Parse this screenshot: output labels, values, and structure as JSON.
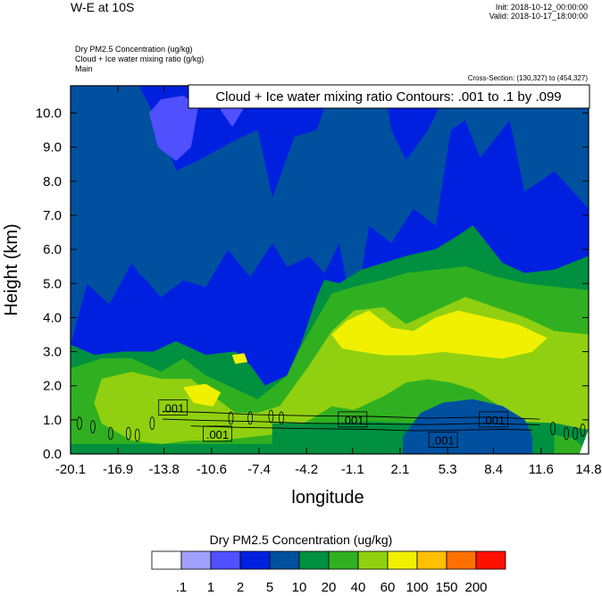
{
  "header": {
    "title": "W-E at 10S",
    "init": "Init: 2018-10-12_00:00:00",
    "valid": "Valid: 2018-10-17_18:00:00",
    "var1": "Dry PM2.5 Concentration   (ug/kg)",
    "var2": "Cloud + Ice water mixing ratio   (g/kg)",
    "var3": "Main",
    "cross_section": "Cross-Section: (130,327) to (454,327)"
  },
  "chart_data": {
    "type": "heatmap",
    "title": "W-E at 10S",
    "xlabel": "longitude",
    "ylabel": "Height (km)",
    "x_ticks": [
      "-20.1",
      "-16.9",
      "-13.8",
      "-10.6",
      "-7.4",
      "-4.2",
      "-1.1",
      "2.1",
      "5.3",
      "8.4",
      "11.6",
      "14.8"
    ],
    "x_range": [
      -20.1,
      14.8
    ],
    "y_ticks": [
      "0.0",
      "1.0",
      "2.0",
      "3.0",
      "4.0",
      "5.0",
      "6.0",
      "7.0",
      "8.0",
      "9.0",
      "10.0"
    ],
    "y_range": [
      0,
      10.8
    ],
    "contour_title": "Cloud + Ice water mixing ratio Contours: .001 to .1 by .099",
    "contour_labels": [
      {
        "text": ".001",
        "lon": -13.2,
        "h": 1.35
      },
      {
        "text": ".001",
        "lon": -10.2,
        "h": 0.58
      },
      {
        "text": ".001",
        "lon": -1.1,
        "h": 1.0
      },
      {
        "text": ".001",
        "lon": 5.0,
        "h": 0.4
      },
      {
        "text": ".001",
        "lon": 8.4,
        "h": 1.0
      }
    ],
    "colorbar": {
      "title": "Dry PM2.5 Concentration  (ug/kg)",
      "labels": [
        ".1",
        "1",
        "2",
        "5",
        "10",
        "20",
        "40",
        "60",
        "100",
        "150",
        "200"
      ],
      "colors": [
        "#ffffff",
        "#a0a0ff",
        "#5050ff",
        "#0020e0",
        "#0050a0",
        "#009040",
        "#30b020",
        "#90d010",
        "#f0f000",
        "#ffc000",
        "#ff7000",
        "#ff1000"
      ]
    },
    "field_regions": [
      {
        "level": 3,
        "pts": [
          [
            -20.1,
            10.8
          ],
          [
            14.8,
            10.8
          ],
          [
            14.8,
            0
          ],
          [
            -20.1,
            0
          ]
        ]
      },
      {
        "level": 4,
        "pts": [
          [
            -20.1,
            10.8
          ],
          [
            -15.5,
            10.8
          ],
          [
            -14.0,
            9.5
          ],
          [
            -13.0,
            8.3
          ],
          [
            -11.5,
            8.6
          ],
          [
            -9.0,
            9.2
          ],
          [
            -7.5,
            9.5
          ],
          [
            -6.5,
            7.5
          ],
          [
            -5.0,
            9.3
          ],
          [
            -3.5,
            9.5
          ],
          [
            -2.5,
            10.8
          ],
          [
            1.0,
            10.8
          ],
          [
            1.5,
            9.5
          ],
          [
            2.5,
            8.6
          ],
          [
            4.0,
            9.5
          ],
          [
            5.5,
            10.8
          ],
          [
            14.8,
            10.8
          ],
          [
            14.8,
            7.2
          ],
          [
            12.5,
            8.3
          ],
          [
            10.5,
            7.7
          ],
          [
            9.5,
            9.8
          ],
          [
            7.5,
            8.7
          ],
          [
            6.5,
            9.8
          ],
          [
            5.5,
            9.5
          ],
          [
            4.5,
            6.7
          ],
          [
            3.0,
            7.2
          ],
          [
            1.5,
            6.2
          ],
          [
            0.0,
            6.7
          ],
          [
            -1.0,
            4.0
          ],
          [
            -2.0,
            6.2
          ],
          [
            -3.0,
            5.3
          ],
          [
            -4.0,
            5.8
          ],
          [
            -5.5,
            5.5
          ],
          [
            -6.5,
            6.2
          ],
          [
            -8.0,
            5.2
          ],
          [
            -9.5,
            6.0
          ],
          [
            -11.0,
            4.9
          ],
          [
            -12.5,
            5.1
          ],
          [
            -14.0,
            4.6
          ],
          [
            -16.0,
            5.6
          ],
          [
            -17.5,
            4.4
          ],
          [
            -19.0,
            5.0
          ],
          [
            -20.1,
            3.2
          ]
        ]
      },
      {
        "level": 2,
        "pts": [
          [
            -14.8,
            10.0
          ],
          [
            -14.2,
            9.0
          ],
          [
            -13.0,
            8.6
          ],
          [
            -12.0,
            9.0
          ],
          [
            -11.5,
            10.2
          ],
          [
            -12.5,
            10.5
          ],
          [
            -14.0,
            10.4
          ]
        ]
      },
      {
        "level": 2,
        "pts": [
          [
            -10.0,
            10.1
          ],
          [
            -9.2,
            9.6
          ],
          [
            -8.5,
            10.1
          ],
          [
            -9.2,
            10.6
          ]
        ]
      },
      {
        "level": 4,
        "pts": [
          [
            -16.2,
            5.8
          ],
          [
            -15.0,
            5.7
          ],
          [
            -14.6,
            5.0
          ],
          [
            -15.5,
            5.3
          ]
        ]
      },
      {
        "level": 5,
        "pts": [
          [
            -20.1,
            3.2
          ],
          [
            -18.5,
            2.9
          ],
          [
            -16.5,
            3.0
          ],
          [
            -14.5,
            3.0
          ],
          [
            -13.0,
            3.3
          ],
          [
            -11.0,
            2.9
          ],
          [
            -9.0,
            3.0
          ],
          [
            -8.0,
            2.6
          ],
          [
            -7.0,
            2.0
          ],
          [
            -5.5,
            2.3
          ],
          [
            -4.5,
            3.3
          ],
          [
            -3.5,
            4.6
          ],
          [
            -3.0,
            5.1
          ],
          [
            -2.0,
            5.0
          ],
          [
            -0.5,
            5.4
          ],
          [
            1.0,
            5.6
          ],
          [
            2.5,
            5.8
          ],
          [
            4.5,
            6.0
          ],
          [
            6.0,
            6.4
          ],
          [
            7.0,
            6.7
          ],
          [
            9.0,
            5.6
          ],
          [
            10.5,
            5.3
          ],
          [
            12.5,
            5.4
          ],
          [
            14.8,
            5.8
          ],
          [
            14.8,
            0.0
          ],
          [
            -20.1,
            0.0
          ]
        ]
      },
      {
        "level": 6,
        "pts": [
          [
            -20.1,
            2.5
          ],
          [
            -18.0,
            2.8
          ],
          [
            -16.0,
            2.8
          ],
          [
            -14.0,
            2.4
          ],
          [
            -12.5,
            2.8
          ],
          [
            -11.0,
            2.3
          ],
          [
            -9.0,
            1.9
          ],
          [
            -7.5,
            1.6
          ],
          [
            -5.5,
            2.3
          ],
          [
            -4.5,
            3.2
          ],
          [
            -2.5,
            4.7
          ],
          [
            -1.0,
            4.9
          ],
          [
            1.0,
            5.1
          ],
          [
            2.5,
            5.3
          ],
          [
            4.5,
            5.4
          ],
          [
            6.5,
            5.5
          ],
          [
            8.5,
            5.2
          ],
          [
            10.5,
            5.0
          ],
          [
            12.5,
            4.9
          ],
          [
            14.8,
            4.8
          ],
          [
            14.8,
            0.3
          ],
          [
            -20.1,
            0.3
          ]
        ]
      },
      {
        "level": 7,
        "pts": [
          [
            -18.0,
            2.2
          ],
          [
            -16.0,
            2.4
          ],
          [
            -14.0,
            2.2
          ],
          [
            -12.0,
            2.2
          ],
          [
            -10.5,
            1.7
          ],
          [
            -9.0,
            1.2
          ],
          [
            -7.5,
            1.2
          ],
          [
            -6.0,
            1.4
          ],
          [
            -4.0,
            2.6
          ],
          [
            -2.5,
            3.6
          ],
          [
            -1.0,
            4.2
          ],
          [
            1.0,
            4.3
          ],
          [
            2.5,
            3.8
          ],
          [
            4.5,
            4.2
          ],
          [
            6.5,
            4.6
          ],
          [
            8.5,
            4.3
          ],
          [
            10.5,
            4.0
          ],
          [
            12.5,
            3.6
          ],
          [
            14.8,
            3.5
          ],
          [
            14.8,
            0.5
          ],
          [
            12.0,
            0.6
          ],
          [
            10.0,
            1.0
          ],
          [
            8.5,
            1.5
          ],
          [
            7.0,
            1.9
          ],
          [
            5.5,
            2.1
          ],
          [
            4.0,
            2.2
          ],
          [
            2.5,
            2.1
          ],
          [
            1.0,
            1.7
          ],
          [
            -1.0,
            1.3
          ],
          [
            -2.5,
            1.4
          ],
          [
            -4.0,
            1.0
          ],
          [
            -6.0,
            0.6
          ],
          [
            -8.0,
            0.5
          ],
          [
            -10.0,
            0.4
          ],
          [
            -12.0,
            0.4
          ],
          [
            -14.0,
            0.3
          ],
          [
            -16.0,
            0.4
          ],
          [
            -18.0,
            0.9
          ],
          [
            -18.5,
            1.5
          ]
        ]
      },
      {
        "level": 8,
        "pts": [
          [
            -2.5,
            3.5
          ],
          [
            -1.5,
            3.9
          ],
          [
            0.0,
            4.2
          ],
          [
            1.5,
            3.7
          ],
          [
            3.0,
            3.6
          ],
          [
            4.5,
            4.0
          ],
          [
            6.0,
            4.2
          ],
          [
            8.0,
            4.0
          ],
          [
            10.0,
            3.8
          ],
          [
            12.0,
            3.4
          ],
          [
            11.0,
            3.0
          ],
          [
            9.0,
            2.8
          ],
          [
            7.0,
            2.9
          ],
          [
            5.0,
            3.0
          ],
          [
            3.0,
            2.9
          ],
          [
            1.0,
            2.9
          ],
          [
            -0.5,
            3.0
          ],
          [
            -1.8,
            3.1
          ]
        ]
      },
      {
        "level": 8,
        "pts": [
          [
            -12.5,
            1.95
          ],
          [
            -11.0,
            2.05
          ],
          [
            -10.0,
            1.8
          ],
          [
            -10.5,
            1.4
          ],
          [
            -11.8,
            1.5
          ]
        ]
      },
      {
        "level": 8,
        "pts": [
          [
            -9.2,
            2.9
          ],
          [
            -8.4,
            2.95
          ],
          [
            -8.2,
            2.7
          ],
          [
            -9.0,
            2.65
          ]
        ]
      },
      {
        "level": 5,
        "pts": [
          [
            -6.5,
            0.0
          ],
          [
            -6.5,
            0.9
          ],
          [
            -3.0,
            0.9
          ],
          [
            0.0,
            0.95
          ],
          [
            3.0,
            0.9
          ],
          [
            6.0,
            1.0
          ],
          [
            9.0,
            0.95
          ],
          [
            12.5,
            0.9
          ],
          [
            14.8,
            0.7
          ],
          [
            14.8,
            0.0
          ]
        ]
      },
      {
        "level": 4,
        "pts": [
          [
            2.3,
            0.0
          ],
          [
            2.3,
            0.5
          ],
          [
            3.5,
            1.2
          ],
          [
            5.0,
            1.5
          ],
          [
            7.0,
            1.6
          ],
          [
            9.0,
            1.4
          ],
          [
            10.5,
            1.0
          ],
          [
            11.0,
            0.5
          ],
          [
            11.0,
            0.0
          ]
        ]
      },
      {
        "level": 6,
        "pts": [
          [
            12.5,
            0.0
          ],
          [
            12.5,
            0.55
          ],
          [
            13.8,
            0.45
          ],
          [
            14.4,
            0.2
          ],
          [
            14.4,
            0.0
          ]
        ]
      },
      {
        "level": 0,
        "pts": [
          [
            14.2,
            0.0
          ],
          [
            14.8,
            0.0
          ],
          [
            14.8,
            0.7
          ]
        ]
      }
    ]
  }
}
